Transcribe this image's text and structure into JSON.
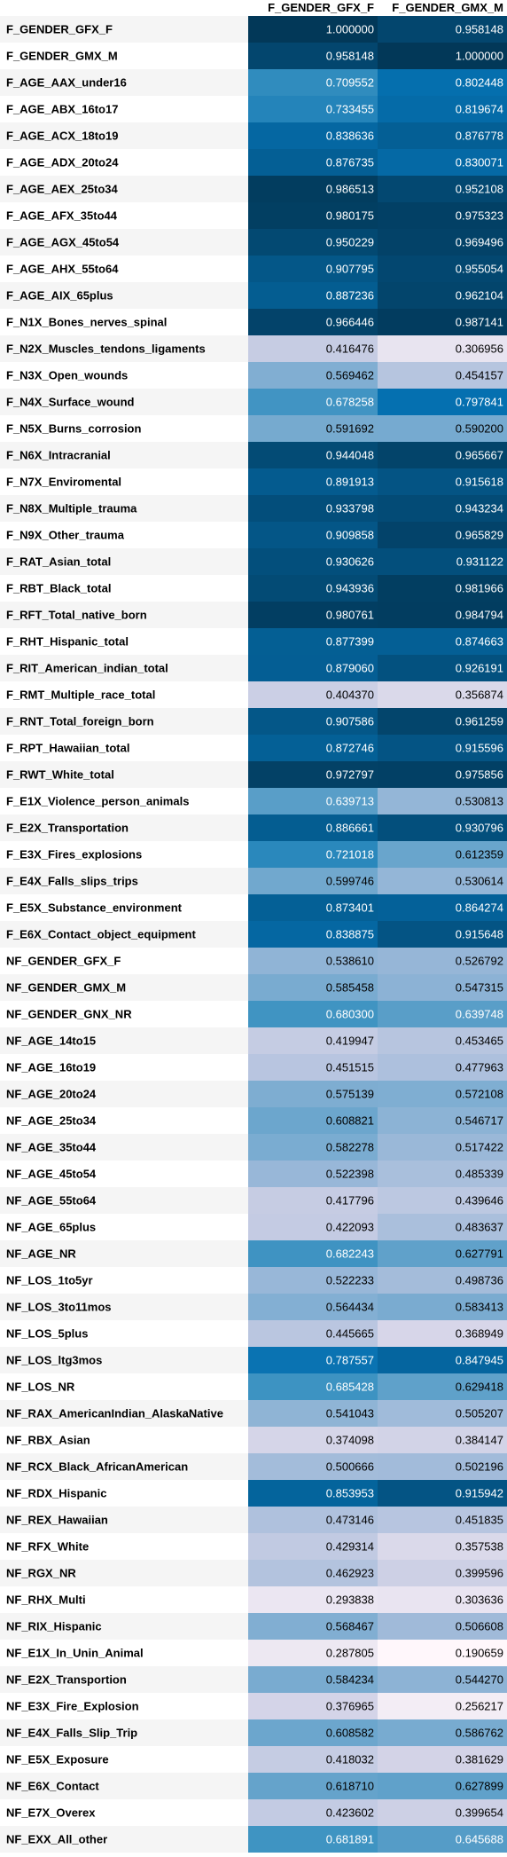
{
  "chart_data": {
    "type": "heatmap",
    "columns": [
      "F_GENDER_GFX_F",
      "F_GENDER_GMX_M"
    ],
    "rows": [
      {
        "label": "F_GENDER_GFX_F",
        "values": [
          "1.000000",
          "0.958148"
        ]
      },
      {
        "label": "F_GENDER_GMX_M",
        "values": [
          "0.958148",
          "1.000000"
        ]
      },
      {
        "label": "F_AGE_AAX_under16",
        "values": [
          "0.709552",
          "0.802448"
        ]
      },
      {
        "label": "F_AGE_ABX_16to17",
        "values": [
          "0.733455",
          "0.819674"
        ]
      },
      {
        "label": "F_AGE_ACX_18to19",
        "values": [
          "0.838636",
          "0.876778"
        ]
      },
      {
        "label": "F_AGE_ADX_20to24",
        "values": [
          "0.876735",
          "0.830071"
        ]
      },
      {
        "label": "F_AGE_AEX_25to34",
        "values": [
          "0.986513",
          "0.952108"
        ]
      },
      {
        "label": "F_AGE_AFX_35to44",
        "values": [
          "0.980175",
          "0.975323"
        ]
      },
      {
        "label": "F_AGE_AGX_45to54",
        "values": [
          "0.950229",
          "0.969496"
        ]
      },
      {
        "label": "F_AGE_AHX_55to64",
        "values": [
          "0.907795",
          "0.955054"
        ]
      },
      {
        "label": "F_AGE_AIX_65plus",
        "values": [
          "0.887236",
          "0.962104"
        ]
      },
      {
        "label": "F_N1X_Bones_nerves_spinal",
        "values": [
          "0.966446",
          "0.987141"
        ]
      },
      {
        "label": "F_N2X_Muscles_tendons_ligaments",
        "values": [
          "0.416476",
          "0.306956"
        ]
      },
      {
        "label": "F_N3X_Open_wounds",
        "values": [
          "0.569462",
          "0.454157"
        ]
      },
      {
        "label": "F_N4X_Surface_wound",
        "values": [
          "0.678258",
          "0.797841"
        ]
      },
      {
        "label": "F_N5X_Burns_corrosion",
        "values": [
          "0.591692",
          "0.590200"
        ]
      },
      {
        "label": "F_N6X_Intracranial",
        "values": [
          "0.944048",
          "0.965667"
        ]
      },
      {
        "label": "F_N7X_Enviromental",
        "values": [
          "0.891913",
          "0.915618"
        ]
      },
      {
        "label": "F_N8X_Multiple_trauma",
        "values": [
          "0.933798",
          "0.943234"
        ]
      },
      {
        "label": "F_N9X_Other_trauma",
        "values": [
          "0.909858",
          "0.965829"
        ]
      },
      {
        "label": "F_RAT_Asian_total",
        "values": [
          "0.930626",
          "0.931122"
        ]
      },
      {
        "label": "F_RBT_Black_total",
        "values": [
          "0.943936",
          "0.981966"
        ]
      },
      {
        "label": "F_RFT_Total_native_born",
        "values": [
          "0.980761",
          "0.984794"
        ]
      },
      {
        "label": "F_RHT_Hispanic_total",
        "values": [
          "0.877399",
          "0.874663"
        ]
      },
      {
        "label": "F_RIT_American_indian_total",
        "values": [
          "0.879060",
          "0.926191"
        ]
      },
      {
        "label": "F_RMT_Multiple_race_total",
        "values": [
          "0.404370",
          "0.356874"
        ]
      },
      {
        "label": "F_RNT_Total_foreign_born",
        "values": [
          "0.907586",
          "0.961259"
        ]
      },
      {
        "label": "F_RPT_Hawaiian_total",
        "values": [
          "0.872746",
          "0.915596"
        ]
      },
      {
        "label": "F_RWT_White_total",
        "values": [
          "0.972797",
          "0.975856"
        ]
      },
      {
        "label": "F_E1X_Violence_person_animals",
        "values": [
          "0.639713",
          "0.530813"
        ]
      },
      {
        "label": "F_E2X_Transportation",
        "values": [
          "0.886661",
          "0.930796"
        ]
      },
      {
        "label": "F_E3X_Fires_explosions",
        "values": [
          "0.721018",
          "0.612359"
        ]
      },
      {
        "label": "F_E4X_Falls_slips_trips",
        "values": [
          "0.599746",
          "0.530614"
        ]
      },
      {
        "label": "F_E5X_Substance_environment",
        "values": [
          "0.873401",
          "0.864274"
        ]
      },
      {
        "label": "F_E6X_Contact_object_equipment",
        "values": [
          "0.838875",
          "0.915648"
        ]
      },
      {
        "label": "NF_GENDER_GFX_F",
        "values": [
          "0.538610",
          "0.526792"
        ]
      },
      {
        "label": "NF_GENDER_GMX_M",
        "values": [
          "0.585458",
          "0.547315"
        ]
      },
      {
        "label": "NF_GENDER_GNX_NR",
        "values": [
          "0.680300",
          "0.639748"
        ]
      },
      {
        "label": "NF_AGE_14to15",
        "values": [
          "0.419947",
          "0.453465"
        ]
      },
      {
        "label": "NF_AGE_16to19",
        "values": [
          "0.451515",
          "0.477963"
        ]
      },
      {
        "label": "NF_AGE_20to24",
        "values": [
          "0.575139",
          "0.572108"
        ]
      },
      {
        "label": "NF_AGE_25to34",
        "values": [
          "0.608821",
          "0.546717"
        ]
      },
      {
        "label": "NF_AGE_35to44",
        "values": [
          "0.582278",
          "0.517422"
        ]
      },
      {
        "label": "NF_AGE_45to54",
        "values": [
          "0.522398",
          "0.485339"
        ]
      },
      {
        "label": "NF_AGE_55to64",
        "values": [
          "0.417796",
          "0.439646"
        ]
      },
      {
        "label": "NF_AGE_65plus",
        "values": [
          "0.422093",
          "0.483637"
        ]
      },
      {
        "label": "NF_AGE_NR",
        "values": [
          "0.682243",
          "0.627791"
        ]
      },
      {
        "label": "NF_LOS_1to5yr",
        "values": [
          "0.522233",
          "0.498736"
        ]
      },
      {
        "label": "NF_LOS_3to11mos",
        "values": [
          "0.564434",
          "0.583413"
        ]
      },
      {
        "label": "NF_LOS_5plus",
        "values": [
          "0.445665",
          "0.368949"
        ]
      },
      {
        "label": "NF_LOS_ltg3mos",
        "values": [
          "0.787557",
          "0.847945"
        ]
      },
      {
        "label": "NF_LOS_NR",
        "values": [
          "0.685428",
          "0.629418"
        ]
      },
      {
        "label": "NF_RAX_AmericanIndian_AlaskaNative",
        "values": [
          "0.541043",
          "0.505207"
        ]
      },
      {
        "label": "NF_RBX_Asian",
        "values": [
          "0.374098",
          "0.384147"
        ]
      },
      {
        "label": "NF_RCX_Black_AfricanAmerican",
        "values": [
          "0.500666",
          "0.502196"
        ]
      },
      {
        "label": "NF_RDX_Hispanic",
        "values": [
          "0.853953",
          "0.915942"
        ]
      },
      {
        "label": "NF_REX_Hawaiian",
        "values": [
          "0.473146",
          "0.451835"
        ]
      },
      {
        "label": "NF_RFX_White",
        "values": [
          "0.429314",
          "0.357538"
        ]
      },
      {
        "label": "NF_RGX_NR",
        "values": [
          "0.462923",
          "0.399596"
        ]
      },
      {
        "label": "NF_RHX_Multi",
        "values": [
          "0.293838",
          "0.303636"
        ]
      },
      {
        "label": "NF_RIX_Hispanic",
        "values": [
          "0.568467",
          "0.506608"
        ]
      },
      {
        "label": "NF_E1X_In_Unin_Animal",
        "values": [
          "0.287805",
          "0.190659"
        ]
      },
      {
        "label": "NF_E2X_Transportion",
        "values": [
          "0.584234",
          "0.544270"
        ]
      },
      {
        "label": "NF_E3X_Fire_Explosion",
        "values": [
          "0.376965",
          "0.256217"
        ]
      },
      {
        "label": "NF_E4X_Falls_Slip_Trip",
        "values": [
          "0.608582",
          "0.586762"
        ]
      },
      {
        "label": "NF_E5X_Exposure",
        "values": [
          "0.418032",
          "0.381629"
        ]
      },
      {
        "label": "NF_E6X_Contact",
        "values": [
          "0.618710",
          "0.627899"
        ]
      },
      {
        "label": "NF_E7X_Overex",
        "values": [
          "0.423602",
          "0.399654"
        ]
      },
      {
        "label": "NF_EXX_All_other",
        "values": [
          "0.681891",
          "0.645688"
        ]
      }
    ],
    "colormap": {
      "low": "#fff7fb",
      "mid": "#74a9cf",
      "high": "#023858"
    },
    "value_range": [
      0.19,
      1.0
    ],
    "grid": false,
    "legend": "none"
  }
}
